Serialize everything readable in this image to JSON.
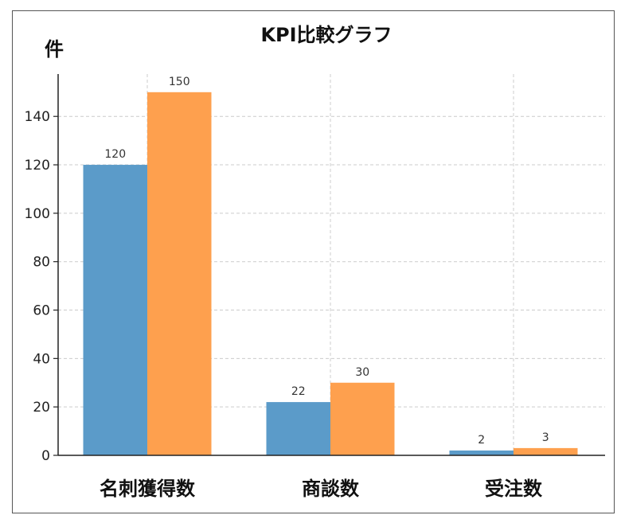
{
  "chart_data": {
    "type": "bar",
    "title": "KPI比較グラフ",
    "ylabel": "件",
    "xlabel": "",
    "categories": [
      "名刺獲得数",
      "商談数",
      "受注数"
    ],
    "series": [
      {
        "values": [
          120,
          22,
          2
        ],
        "color": "#5b9bc9"
      },
      {
        "values": [
          150,
          30,
          3
        ],
        "color": "#fea04e"
      }
    ],
    "ylim": [
      0,
      157.5
    ],
    "yticks": [
      0,
      20,
      40,
      60,
      80,
      100,
      120,
      140
    ],
    "grid": true,
    "legend": "none",
    "data_labels": true
  }
}
